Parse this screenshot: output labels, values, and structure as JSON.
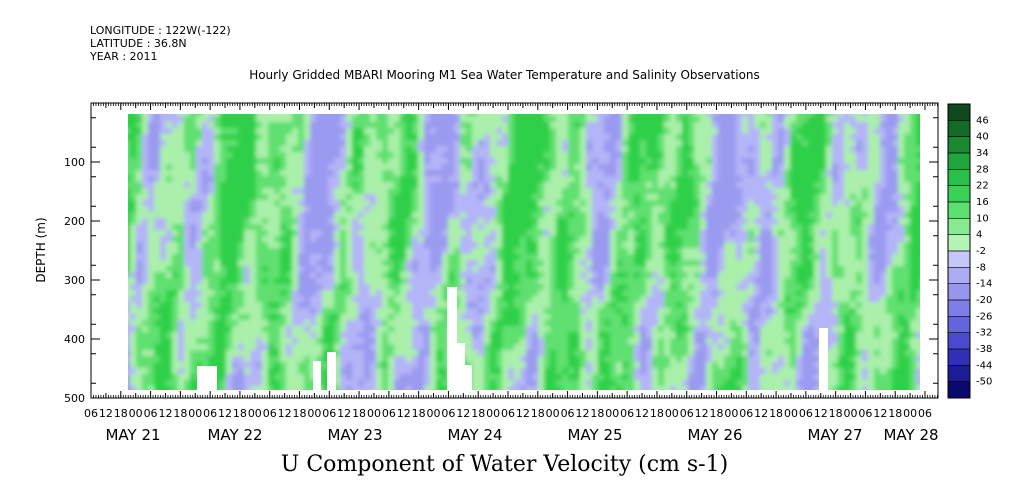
{
  "header": {
    "longitude": "LONGITUDE : 122W(-122)",
    "latitude": "LATITUDE : 36.8N",
    "year": "YEAR : 2011"
  },
  "chart_data": {
    "type": "heatmap",
    "title": "Hourly Gridded MBARI Mooring M1 Sea Water Temperature and Salinity Observations",
    "xlabel": "U Component of Water Velocity (cm s-1)",
    "ylabel": "DEPTH (m)",
    "y_reversed": true,
    "ylim": [
      0,
      500
    ],
    "y_ticks": [
      100,
      200,
      300,
      400,
      500
    ],
    "x_hour_ticks": [
      "06",
      "12",
      "18",
      "00",
      "06",
      "12",
      "18",
      "00",
      "06",
      "12",
      "18",
      "00",
      "06",
      "12",
      "18",
      "00",
      "06",
      "12",
      "18",
      "00",
      "06",
      "12",
      "18",
      "00",
      "06",
      "12",
      "18",
      "00",
      "06",
      "12",
      "18",
      "00",
      "06",
      "12",
      "18",
      "00",
      "06",
      "12",
      "18",
      "00",
      "06",
      "12",
      "18",
      "00",
      "06",
      "12",
      "18",
      "00",
      "06",
      "12",
      "18",
      "00",
      "06",
      "12",
      "18",
      "00",
      "06"
    ],
    "x_date_ticks": [
      "MAY 21",
      "MAY 22",
      "MAY 23",
      "MAY 24",
      "MAY 25",
      "MAY 26",
      "MAY 27",
      "MAY 28"
    ],
    "colorbar": {
      "labels": [
        "46",
        "40",
        "34",
        "28",
        "22",
        "16",
        "10",
        "4",
        "-2",
        "-8",
        "-14",
        "-20",
        "-26",
        "-32",
        "-38",
        "-44",
        "-50"
      ],
      "range": [
        -50,
        50
      ]
    },
    "colors": {
      "negative_light": "#b4b4f8",
      "negative": "#9a9af0",
      "positive_light": "#aaf0aa",
      "positive": "#5ee070",
      "positive_strong": "#2ed04a"
    }
  }
}
